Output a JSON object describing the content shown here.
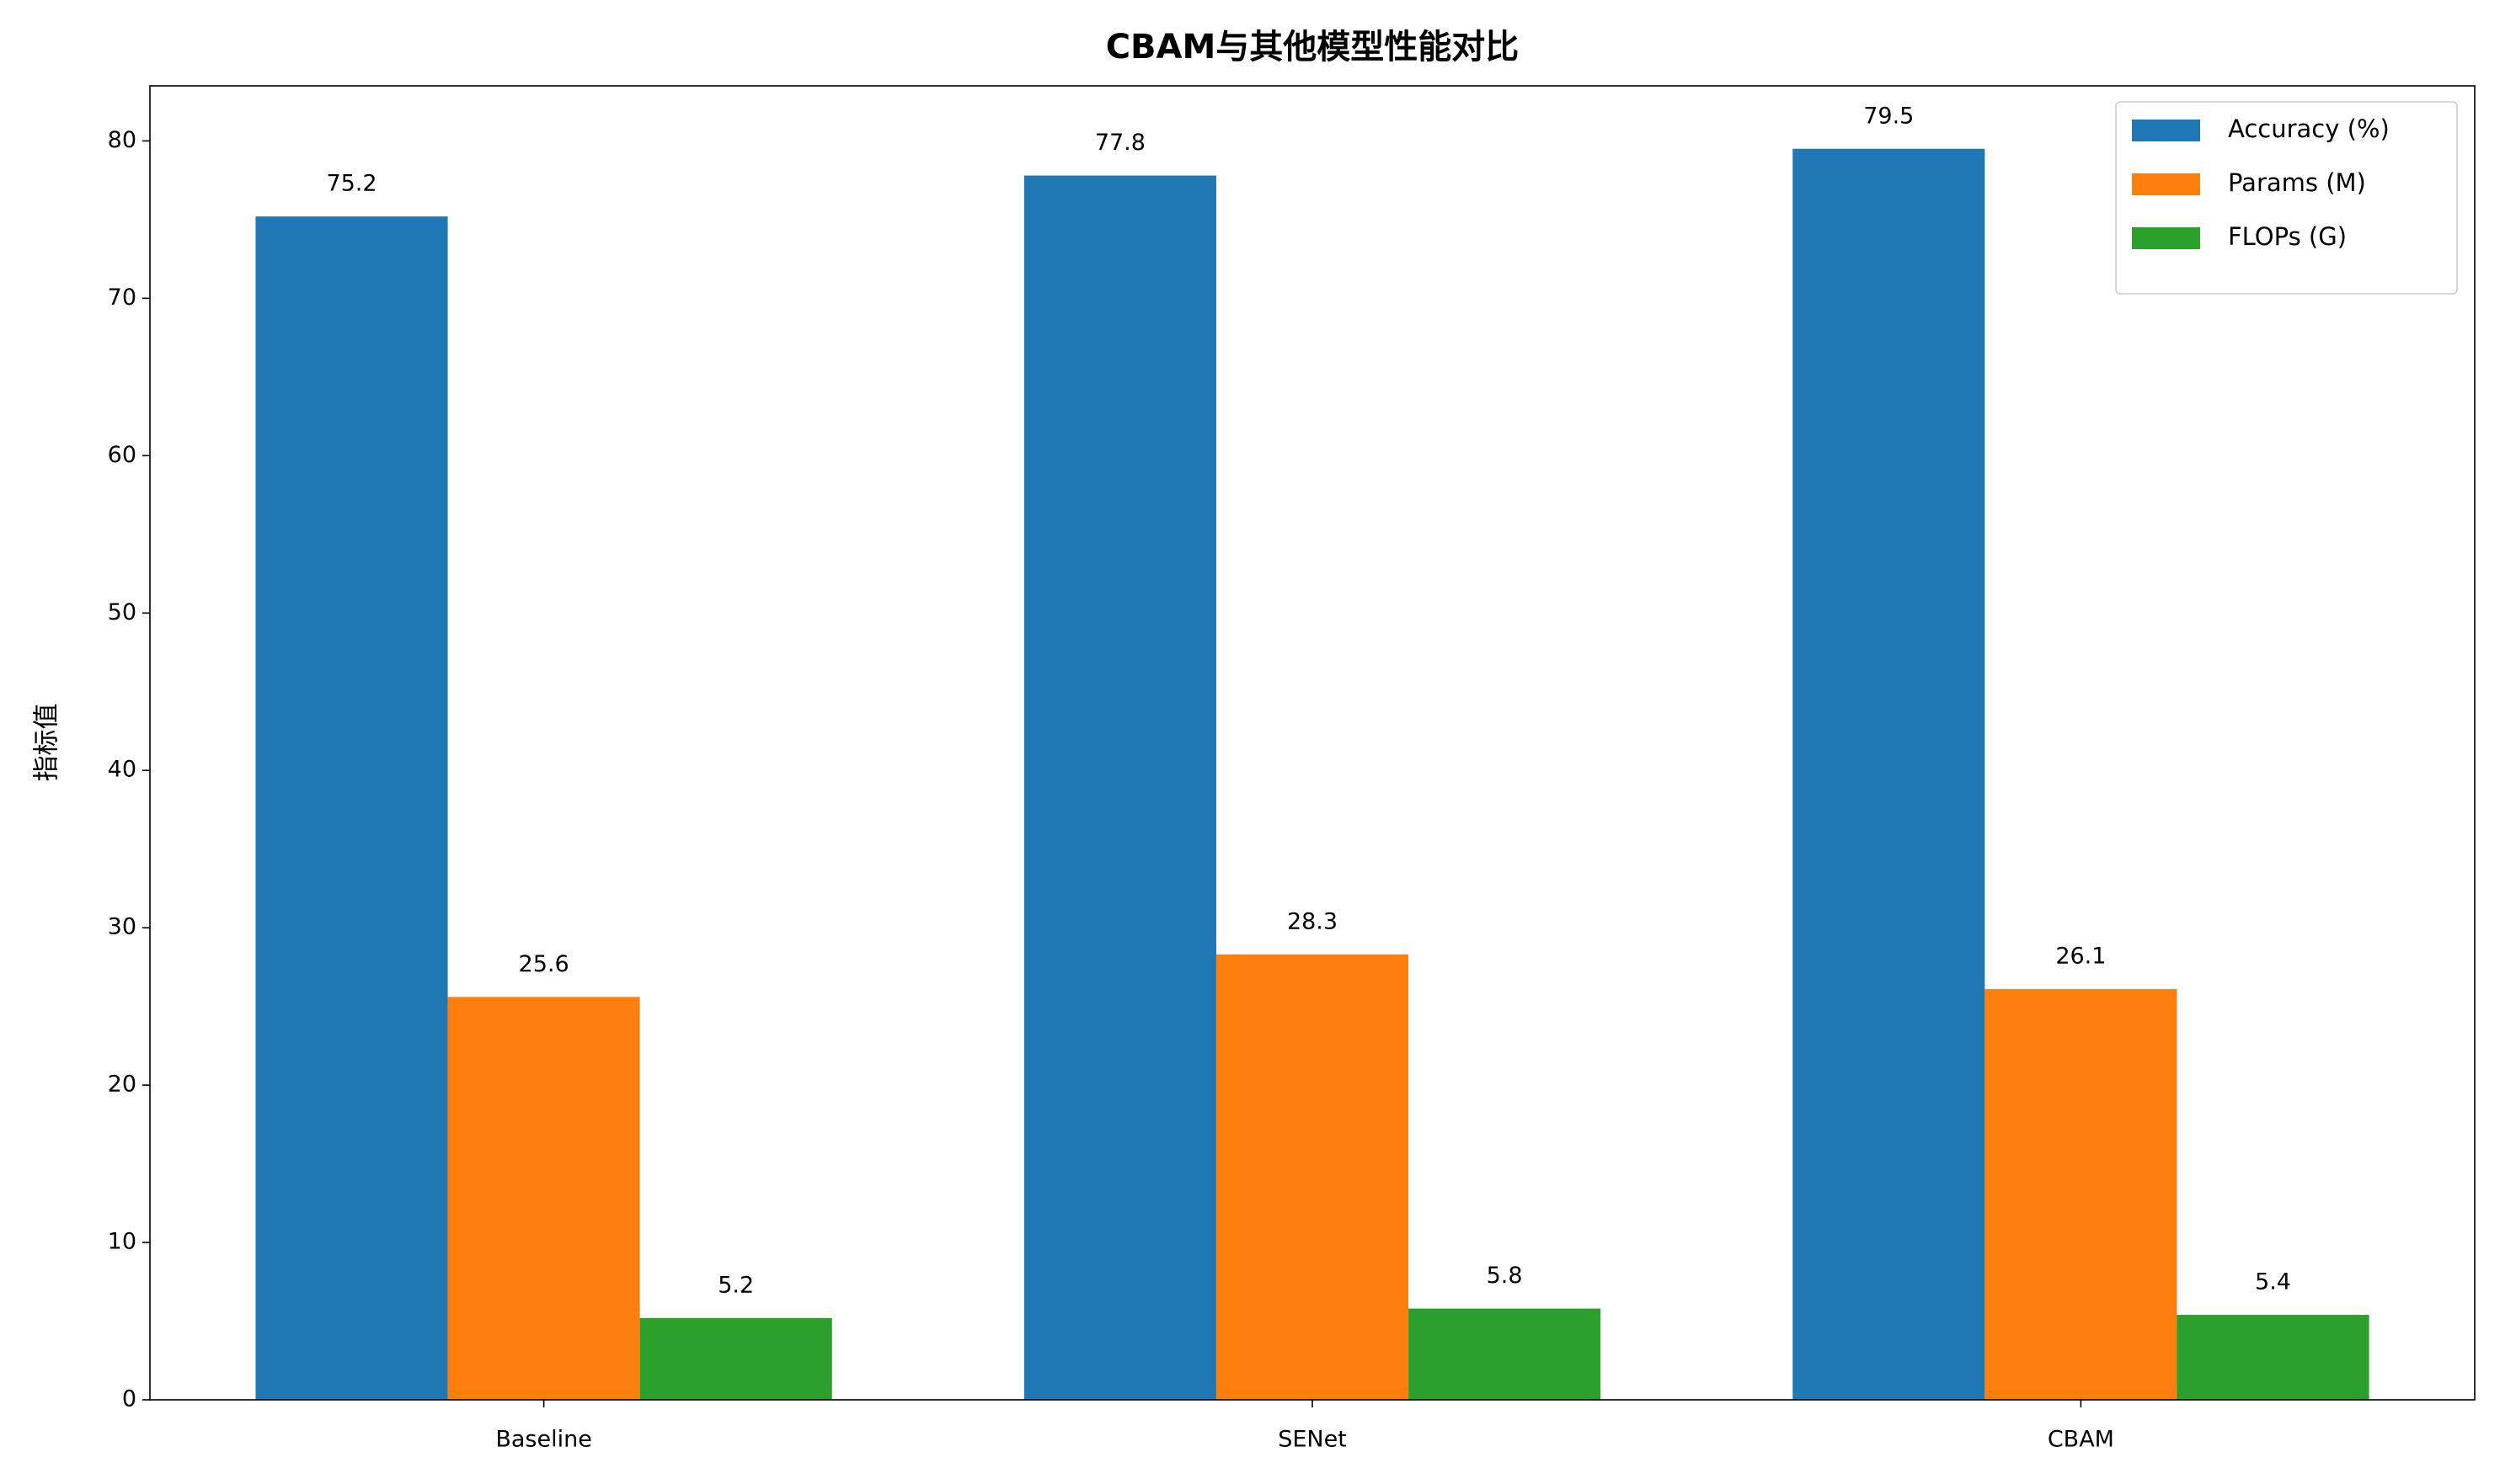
{
  "chart_data": {
    "type": "bar",
    "title": "CBAM与其他模型性能对比",
    "y_label": "指标值",
    "categories": [
      "Baseline",
      "SENet",
      "CBAM"
    ],
    "series": [
      {
        "name": "Accuracy (%)",
        "color": "#1f77b4",
        "values": [
          75.2,
          77.8,
          79.5
        ]
      },
      {
        "name": "Params (M)",
        "color": "#ff7f0e",
        "values": [
          25.6,
          28.3,
          26.1
        ]
      },
      {
        "name": "FLOPs (G)",
        "color": "#2ca02c",
        "values": [
          5.2,
          5.8,
          5.4
        ]
      }
    ],
    "ylim": [
      0,
      83.5
    ],
    "yticks": [
      0,
      10,
      20,
      30,
      40,
      50,
      60,
      70,
      80
    ],
    "legend": "upper right",
    "grid": false
  }
}
